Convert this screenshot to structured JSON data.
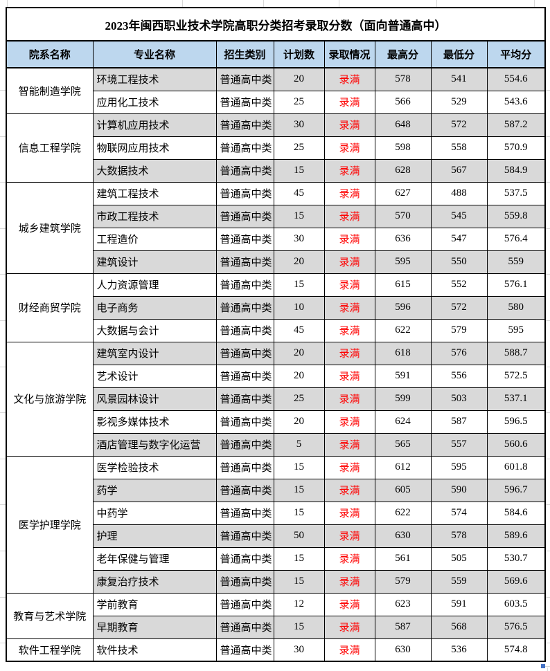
{
  "title": "2023年闽西职业技术学院高职分类招考录取分数（面向普通高中）",
  "table": {
    "columns": [
      "院系名称",
      "专业名称",
      "招生类别",
      "计划数",
      "录取情况",
      "最高分",
      "最低分",
      "平均分"
    ],
    "sections": [
      {
        "department": "智能制造学院",
        "rows": [
          [
            "环境工程技术",
            "普通高中类",
            "20",
            "录满",
            "578",
            "541",
            "554.6"
          ],
          [
            "应用化工技术",
            "普通高中类",
            "25",
            "录满",
            "566",
            "529",
            "543.6"
          ]
        ]
      },
      {
        "department": "信息工程学院",
        "rows": [
          [
            "计算机应用技术",
            "普通高中类",
            "30",
            "录满",
            "648",
            "572",
            "587.2"
          ],
          [
            "物联网应用技术",
            "普通高中类",
            "25",
            "录满",
            "598",
            "558",
            "570.9"
          ],
          [
            "大数据技术",
            "普通高中类",
            "15",
            "录满",
            "628",
            "567",
            "584.9"
          ]
        ]
      },
      {
        "department": "城乡建筑学院",
        "rows": [
          [
            "建筑工程技术",
            "普通高中类",
            "45",
            "录满",
            "627",
            "488",
            "537.5"
          ],
          [
            "市政工程技术",
            "普通高中类",
            "15",
            "录满",
            "570",
            "545",
            "559.8"
          ],
          [
            "工程造价",
            "普通高中类",
            "30",
            "录满",
            "636",
            "547",
            "576.4"
          ],
          [
            "建筑设计",
            "普通高中类",
            "20",
            "录满",
            "595",
            "550",
            "559"
          ]
        ]
      },
      {
        "department": "财经商贸学院",
        "rows": [
          [
            "人力资源管理",
            "普通高中类",
            "15",
            "录满",
            "615",
            "552",
            "576.1"
          ],
          [
            "电子商务",
            "普通高中类",
            "10",
            "录满",
            "596",
            "572",
            "580"
          ],
          [
            "大数据与会计",
            "普通高中类",
            "45",
            "录满",
            "622",
            "579",
            "595"
          ]
        ]
      },
      {
        "department": "文化与旅游学院",
        "rows": [
          [
            "建筑室内设计",
            "普通高中类",
            "20",
            "录满",
            "618",
            "576",
            "588.7"
          ],
          [
            "艺术设计",
            "普通高中类",
            "20",
            "录满",
            "591",
            "556",
            "572.5"
          ],
          [
            "风景园林设计",
            "普通高中类",
            "25",
            "录满",
            "599",
            "503",
            "537.1"
          ],
          [
            "影视多媒体技术",
            "普通高中类",
            "20",
            "录满",
            "624",
            "587",
            "596.5"
          ],
          [
            "酒店管理与数字化运营",
            "普通高中类",
            "5",
            "录满",
            "565",
            "557",
            "560.6"
          ]
        ]
      },
      {
        "department": "医学护理学院",
        "rows": [
          [
            "医学检验技术",
            "普通高中类",
            "15",
            "录满",
            "612",
            "595",
            "601.8"
          ],
          [
            "药学",
            "普通高中类",
            "15",
            "录满",
            "605",
            "590",
            "596.7"
          ],
          [
            "中药学",
            "普通高中类",
            "15",
            "录满",
            "622",
            "574",
            "584.6"
          ],
          [
            "护理",
            "普通高中类",
            "50",
            "录满",
            "630",
            "578",
            "589.6"
          ],
          [
            "老年保健与管理",
            "普通高中类",
            "15",
            "录满",
            "561",
            "505",
            "530.7"
          ],
          [
            "康复治疗技术",
            "普通高中类",
            "15",
            "录满",
            "579",
            "559",
            "569.6"
          ]
        ]
      },
      {
        "department": "教育与艺术学院",
        "rows": [
          [
            "学前教育",
            "普通高中类",
            "12",
            "录满",
            "623",
            "591",
            "603.5"
          ],
          [
            "早期教育",
            "普通高中类",
            "15",
            "录满",
            "587",
            "568",
            "576.5"
          ]
        ]
      },
      {
        "department": "软件工程学院",
        "rows": [
          [
            "软件技术",
            "普通高中类",
            "30",
            "录满",
            "630",
            "536",
            "574.8"
          ]
        ]
      }
    ]
  },
  "colors": {
    "header_bg": "#BDD7EE",
    "alt_row_bg": "#D9D9D9",
    "status_text": "#FF0000",
    "border": "#000000",
    "gridline": "#D8D8D8",
    "fill_handle": "#4472C4"
  },
  "status_meaning": "录满"
}
